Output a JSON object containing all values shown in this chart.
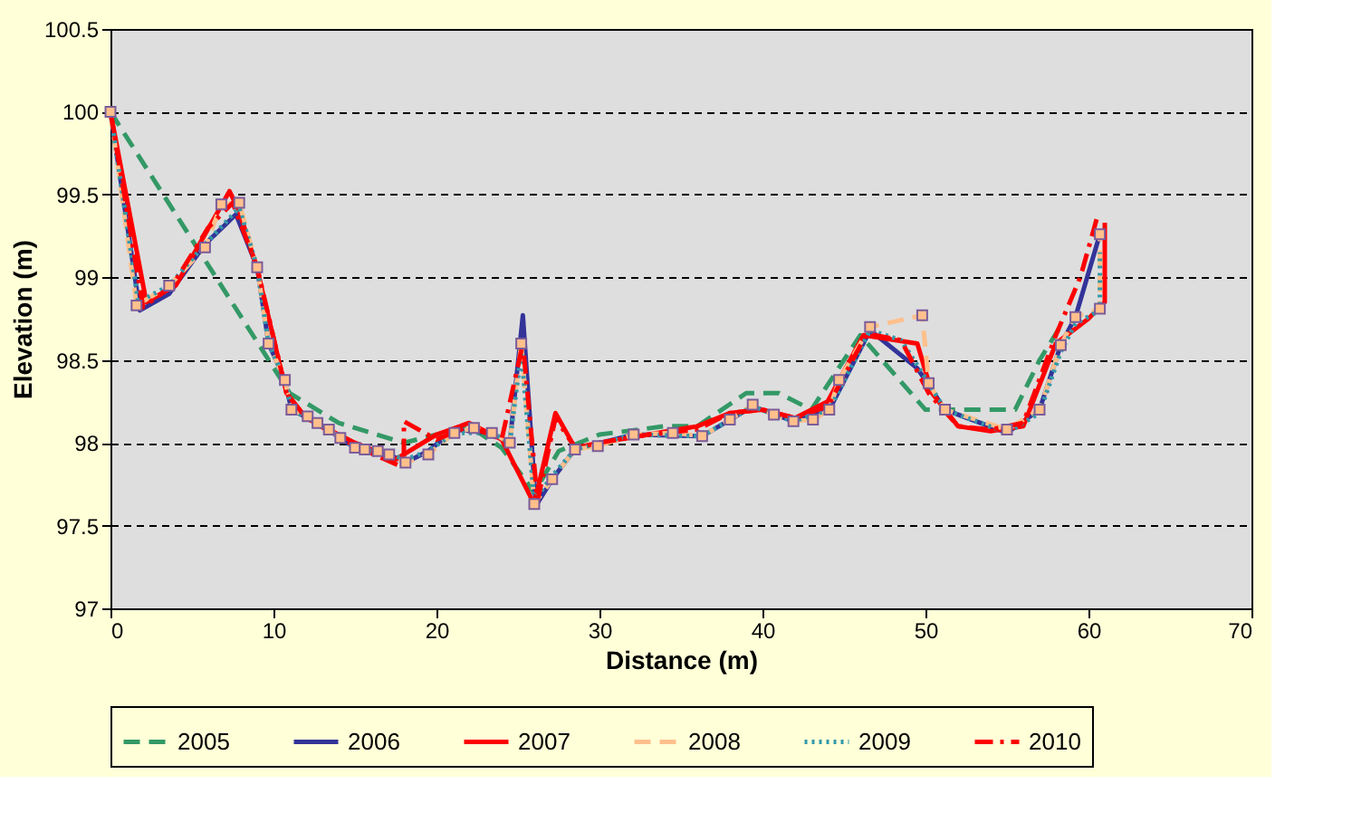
{
  "chart_data": {
    "type": "line",
    "xlabel": "Distance (m)",
    "ylabel": "Elevation (m)",
    "xlim": [
      0,
      70
    ],
    "ylim": [
      97,
      100.5
    ],
    "xticks": [
      0,
      10,
      20,
      30,
      40,
      50,
      60,
      70
    ],
    "yticks": [
      97,
      97.5,
      98,
      98.5,
      99,
      99.5,
      100,
      100.5
    ],
    "grid": "y",
    "legend": "bottom",
    "series": [
      {
        "name": "2005",
        "color": "#339966",
        "line_style": "dashed",
        "marker": "none",
        "x": [
          0,
          11,
          14,
          18,
          22,
          24,
          26,
          27.5,
          30,
          34,
          36,
          39,
          41,
          43,
          46,
          50,
          55.5,
          57,
          58.2
        ],
        "values": [
          100,
          98.3,
          98.12,
          98.0,
          98.1,
          97.97,
          97.7,
          97.95,
          98.05,
          98.1,
          98.1,
          98.3,
          98.3,
          98.2,
          98.65,
          98.2,
          98.2,
          98.5,
          98.69
        ]
      },
      {
        "name": "2006",
        "color": "#333399",
        "line_style": "solid",
        "marker": "none",
        "x": [
          0,
          1.8,
          3.6,
          5.8,
          7.7,
          9.0,
          9.7,
          10.7,
          11.1,
          12.7,
          15,
          17.1,
          18.1,
          19.5,
          21.1,
          23.4,
          24.5,
          25.3,
          26.1,
          27.1,
          28.5,
          32.1,
          36.3,
          39.4,
          41.9,
          44.1,
          46.6,
          49.5,
          51.2,
          55,
          57,
          58.3,
          59.2,
          60.7
        ],
        "values": [
          100,
          98.8,
          98.9,
          99.2,
          99.38,
          99.06,
          98.6,
          98.38,
          98.2,
          98.12,
          97.97,
          97.93,
          97.88,
          97.95,
          98.08,
          98.06,
          98.0,
          98.77,
          97.62,
          97.78,
          97.96,
          98.05,
          98.04,
          98.22,
          98.13,
          98.2,
          98.68,
          98.45,
          98.2,
          98.06,
          98.2,
          98.59,
          98.76,
          99.26
        ]
      },
      {
        "name": "2007",
        "color": "#ff0000",
        "line_style": "solid",
        "marker": "none",
        "x": [
          0,
          2.2,
          4,
          6.5,
          7.3,
          7.9,
          9,
          10.8,
          12,
          15,
          17.5,
          20,
          22,
          24,
          26,
          27.3,
          28.5,
          30,
          33,
          36,
          38,
          40,
          42,
          44,
          46.2,
          49.5,
          50.4,
          52,
          54,
          56,
          58,
          60,
          61,
          61
        ],
        "values": [
          100,
          98.85,
          98.95,
          99.38,
          99.52,
          99.4,
          99.05,
          98.3,
          98.15,
          98.0,
          97.9,
          98.05,
          98.12,
          98.02,
          97.63,
          98.18,
          97.97,
          98.0,
          98.05,
          98.1,
          98.18,
          98.2,
          98.15,
          98.25,
          98.65,
          98.6,
          98.3,
          98.1,
          98.07,
          98.1,
          98.6,
          98.75,
          98.85,
          99.33
        ]
      },
      {
        "name": "2008",
        "color": "#ffc08c",
        "line_style": "dashed",
        "marker": "square",
        "x": [
          0,
          1.6,
          3.6,
          5.8,
          6.8,
          7.9,
          9.0,
          9.7,
          10.7,
          11.1,
          12.1,
          12.7,
          13.4,
          14.1,
          15,
          15.6,
          16.4,
          17.1,
          18.1,
          19.5,
          21.1,
          22.3,
          23.4,
          24.5,
          25.2,
          26.0,
          27.1,
          28.5,
          29.9,
          32.1,
          34.5,
          36.3,
          38.0,
          39.4,
          40.7,
          41.9,
          43.1,
          44.1,
          44.7,
          46.6,
          49.8,
          50.2,
          51.2,
          55.0,
          57.0,
          58.3,
          59.2,
          60.7,
          60.7
        ],
        "values": [
          100,
          98.83,
          98.95,
          99.18,
          99.44,
          99.45,
          99.06,
          98.6,
          98.38,
          98.2,
          98.16,
          98.12,
          98.08,
          98.03,
          97.97,
          97.96,
          97.95,
          97.93,
          97.88,
          97.93,
          98.06,
          98.09,
          98.06,
          98.0,
          98.6,
          97.63,
          97.78,
          97.96,
          97.98,
          98.05,
          98.06,
          98.04,
          98.14,
          98.23,
          98.17,
          98.13,
          98.14,
          98.2,
          98.38,
          98.7,
          98.77,
          98.36,
          98.2,
          98.08,
          98.2,
          98.59,
          98.76,
          98.81,
          99.26
        ]
      },
      {
        "name": "2009",
        "color": "#3399aa",
        "line_style": "dotted",
        "marker": "none",
        "x": [
          0,
          1.7,
          3.6,
          5.8,
          7.9,
          9.0,
          9.7,
          10.7,
          11.1,
          12.7,
          15,
          17.1,
          18.1,
          19.5,
          21.1,
          23.4,
          24.5,
          25.2,
          26.0,
          27.1,
          28.5,
          32.1,
          36.3,
          39.4,
          41.9,
          44.1,
          46.6,
          48.5,
          50.2,
          51.2,
          55,
          57,
          58.3,
          59.2,
          60.7,
          60.7
        ],
        "values": [
          100,
          98.85,
          98.95,
          99.2,
          99.42,
          99.06,
          98.6,
          98.38,
          98.2,
          98.12,
          97.97,
          97.93,
          97.9,
          97.95,
          98.06,
          98.06,
          98.0,
          98.55,
          97.65,
          97.8,
          97.96,
          98.05,
          98.04,
          98.22,
          98.13,
          98.2,
          98.68,
          98.62,
          98.36,
          98.2,
          98.06,
          98.18,
          98.55,
          98.72,
          98.8,
          99.15
        ]
      },
      {
        "name": "2010",
        "color": "#ff0000",
        "line_style": "dashdot",
        "marker": "none",
        "x": [
          0,
          2.0,
          3.8,
          6.0,
          7.5,
          9,
          10.8,
          12,
          15,
          18,
          18,
          20,
          22,
          24,
          25.3,
          26.2,
          27.3,
          28.5,
          30,
          33,
          36,
          38,
          40,
          42,
          44,
          46.4,
          48.5,
          50.2,
          52,
          54,
          56,
          58,
          59.5,
          60.5
        ],
        "values": [
          100,
          98.82,
          98.95,
          99.3,
          99.45,
          99.06,
          98.3,
          98.15,
          97.98,
          97.85,
          98.13,
          98.02,
          98.1,
          98.02,
          98.6,
          97.65,
          98.15,
          97.97,
          98.0,
          98.05,
          98.08,
          98.18,
          98.2,
          98.15,
          98.22,
          98.66,
          98.62,
          98.3,
          98.1,
          98.08,
          98.12,
          98.65,
          99.0,
          99.35
        ]
      }
    ]
  }
}
